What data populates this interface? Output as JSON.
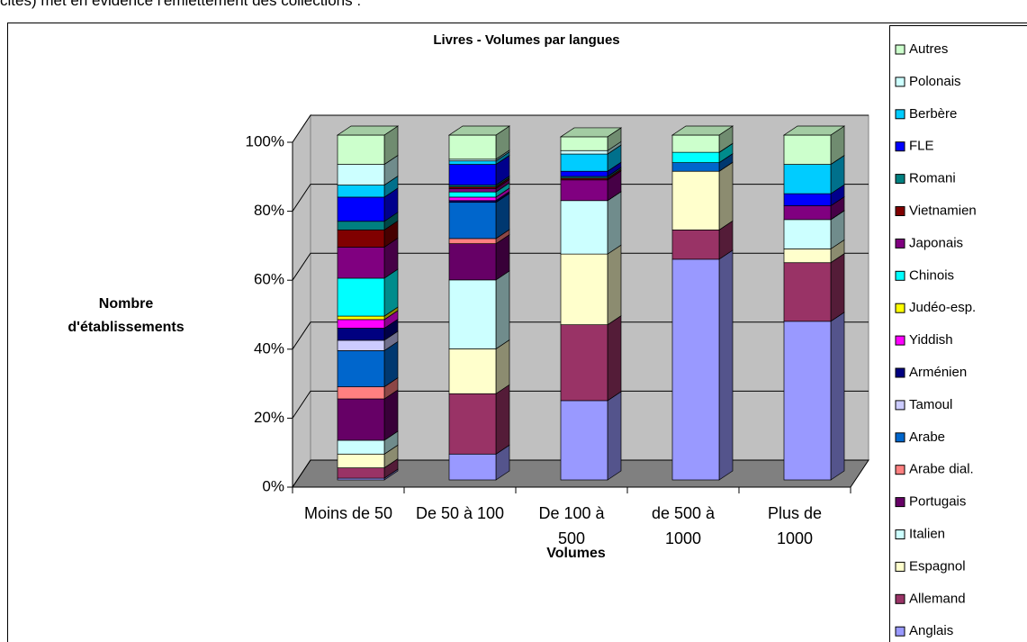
{
  "intro": "cités) met en évidence l'émiettement des collections :",
  "chart_data": {
    "type": "bar3d_stacked_percent",
    "title": "Livres - Volumes par langues",
    "y_label": "Nombre d'établissements",
    "x_label": "Volumes",
    "categories": [
      "Moins de 50",
      "De 50 à 100",
      "De 100 à 500",
      "de 500 à 1000",
      "Plus de 1000"
    ],
    "ylim": [
      0,
      100
    ],
    "yticks": [
      {
        "value": 0,
        "label": "0%"
      },
      {
        "value": 20,
        "label": "20%"
      },
      {
        "value": 40,
        "label": "40%"
      },
      {
        "value": 60,
        "label": "60%"
      },
      {
        "value": 80,
        "label": "80%"
      },
      {
        "value": 100,
        "label": "100%"
      }
    ],
    "grid": true,
    "legend": "right",
    "series": [
      {
        "name": "Anglais",
        "color": "#9999ff",
        "values": [
          0.5,
          7.5,
          23,
          64,
          46
        ]
      },
      {
        "name": "Allemand",
        "color": "#993366",
        "values": [
          3,
          17.5,
          22,
          8.5,
          17
        ]
      },
      {
        "name": "Espagnol",
        "color": "#ffffcc",
        "values": [
          4,
          13,
          20.5,
          17,
          4
        ]
      },
      {
        "name": "Italien",
        "color": "#ccffff",
        "values": [
          4,
          20,
          15.5,
          0,
          8.5
        ]
      },
      {
        "name": "Portugais",
        "color": "#660066",
        "values": [
          12,
          10.5,
          0,
          0,
          0
        ]
      },
      {
        "name": "Arabe dial.",
        "color": "#ff8080",
        "values": [
          3.5,
          1.5,
          0,
          0,
          0
        ]
      },
      {
        "name": "Arabe",
        "color": "#0066cc",
        "values": [
          10.5,
          10.5,
          0,
          2.5,
          0
        ]
      },
      {
        "name": "Tamoul",
        "color": "#ccccff",
        "values": [
          3,
          0,
          0,
          0,
          0
        ]
      },
      {
        "name": "Arménien",
        "color": "#000080",
        "values": [
          3.5,
          0.5,
          0,
          0,
          0
        ]
      },
      {
        "name": "Yiddish",
        "color": "#ff00ff",
        "values": [
          2.5,
          1,
          0,
          0,
          0
        ]
      },
      {
        "name": "Judéo-esp.",
        "color": "#ffff00",
        "values": [
          1,
          0,
          0,
          0,
          0
        ]
      },
      {
        "name": "Chinois",
        "color": "#00ffff",
        "values": [
          11,
          1.5,
          0,
          3,
          0
        ]
      },
      {
        "name": "Japonais",
        "color": "#800080",
        "values": [
          9,
          1,
          6,
          0,
          4
        ]
      },
      {
        "name": "Vietnamien",
        "color": "#800000",
        "values": [
          5,
          0.5,
          0.5,
          0,
          0
        ]
      },
      {
        "name": "Romani",
        "color": "#008080",
        "values": [
          2.5,
          0.5,
          0.5,
          0,
          0
        ]
      },
      {
        "name": "FLE",
        "color": "#0000ff",
        "values": [
          7,
          6,
          1.5,
          0,
          3.5
        ]
      },
      {
        "name": "Berbère",
        "color": "#00ccff",
        "values": [
          3.5,
          1,
          5,
          0,
          8.5
        ]
      },
      {
        "name": "Polonais",
        "color": "#ccffff",
        "values": [
          6,
          0.5,
          1,
          0,
          0
        ]
      },
      {
        "name": "Autres",
        "color": "#ccffcc",
        "values": [
          8.5,
          7,
          4,
          5,
          8.5
        ]
      }
    ]
  }
}
